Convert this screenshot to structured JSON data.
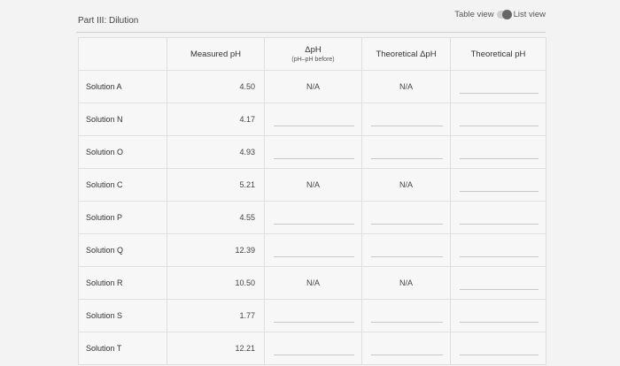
{
  "header": {
    "section_title": "Part III: Dilution",
    "toggle_left": "Table view",
    "toggle_right": "List view"
  },
  "table": {
    "columns": [
      {
        "label": "",
        "sub": ""
      },
      {
        "label": "Measured pH",
        "sub": ""
      },
      {
        "label": "ΔpH",
        "sub": "(pH–pH before)"
      },
      {
        "label": "Theoretical ΔpH",
        "sub": ""
      },
      {
        "label": "Theoretical pH",
        "sub": ""
      }
    ],
    "rows": [
      {
        "name": "Solution A",
        "measured": "4.50",
        "delta": "N/A",
        "theo_delta": "N/A",
        "theo_ph": ""
      },
      {
        "name": "Solution N",
        "measured": "4.17",
        "delta": "",
        "theo_delta": "",
        "theo_ph": ""
      },
      {
        "name": "Solution O",
        "measured": "4.93",
        "delta": "",
        "theo_delta": "",
        "theo_ph": ""
      },
      {
        "name": "Solution C",
        "measured": "5.21",
        "delta": "N/A",
        "theo_delta": "N/A",
        "theo_ph": ""
      },
      {
        "name": "Solution P",
        "measured": "4.55",
        "delta": "",
        "theo_delta": "",
        "theo_ph": ""
      },
      {
        "name": "Solution Q",
        "measured": "12.39",
        "delta": "",
        "theo_delta": "",
        "theo_ph": ""
      },
      {
        "name": "Solution R",
        "measured": "10.50",
        "delta": "N/A",
        "theo_delta": "N/A",
        "theo_ph": ""
      },
      {
        "name": "Solution S",
        "measured": "1.77",
        "delta": "",
        "theo_delta": "",
        "theo_ph": ""
      },
      {
        "name": "Solution T",
        "measured": "12.21",
        "delta": "",
        "theo_delta": "",
        "theo_ph": ""
      }
    ]
  }
}
